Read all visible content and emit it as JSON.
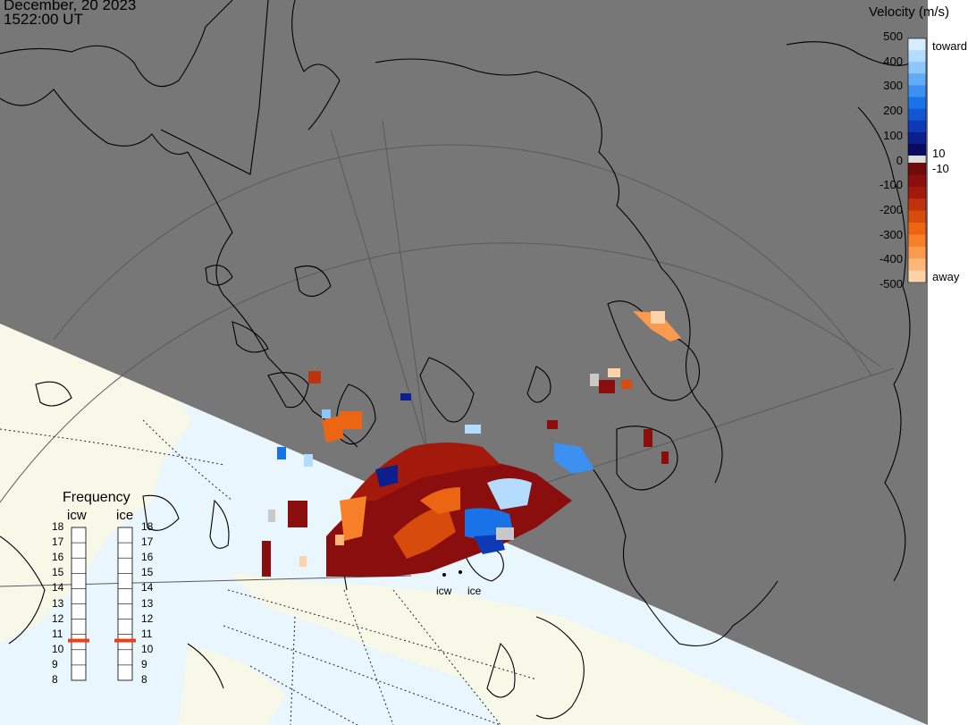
{
  "header": {
    "date": "December, 20 2023",
    "time": "1522:00 UT"
  },
  "velocity_legend": {
    "title": "Velocity (m/s)",
    "ticks": [
      "500",
      "400",
      "300",
      "200",
      "100",
      "0",
      "-100",
      "-200",
      "-300",
      "-400",
      "-500"
    ],
    "marker_toward_low": "10",
    "marker_away_low": "-10",
    "toward_label": "toward",
    "away_label": "away",
    "toward_colors": [
      "#0a0a60",
      "#0c1f8c",
      "#0e3bb5",
      "#1156d2",
      "#1a73e6",
      "#3b90f0",
      "#62acf7",
      "#8cc6fb",
      "#b4dcfe",
      "#d6eeff"
    ],
    "away_colors": [
      "#6e0b0b",
      "#8b0e0e",
      "#a31a0d",
      "#bd330c",
      "#d74b0c",
      "#ec6512",
      "#f67f27",
      "#fa9a4d",
      "#fcb678",
      "#fdd3aa"
    ]
  },
  "frequency_panel": {
    "title": "Frequency",
    "radars": [
      {
        "name": "icw",
        "value_mhz": 10.6
      },
      {
        "name": "ice",
        "value_mhz": 10.6
      }
    ],
    "ticks": [
      "18",
      "17",
      "16",
      "15",
      "14",
      "13",
      "12",
      "11",
      "10",
      "9",
      "8"
    ],
    "marker_color": "#e8401a"
  },
  "radar_sites": [
    "icw",
    "ice"
  ],
  "colors": {
    "night": "#777777",
    "day_land": "#f8f8e8",
    "day_sea": "#e9f6fd"
  }
}
